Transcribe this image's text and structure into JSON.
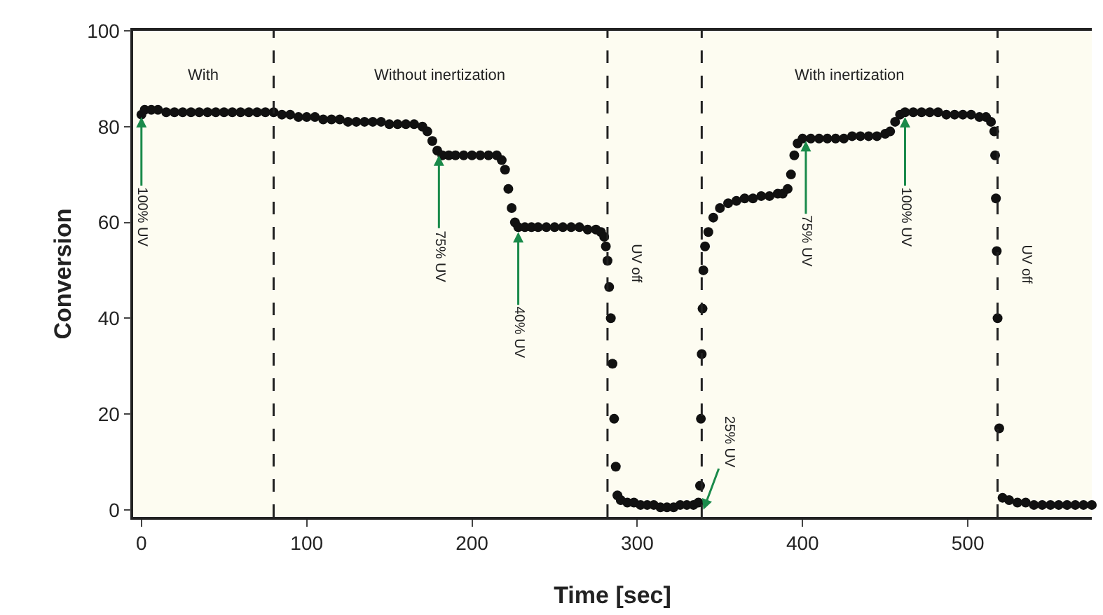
{
  "chart_data": {
    "type": "scatter",
    "xlabel": "Time [sec]",
    "ylabel": "Conversion",
    "xlim": [
      -5,
      575
    ],
    "xticks": [
      0,
      100,
      200,
      300,
      400,
      500
    ],
    "ylim": [
      -1.5,
      100
    ],
    "yticks": [
      0,
      20,
      40,
      60,
      80,
      100
    ],
    "marker": "circle",
    "series": [
      {
        "color": "#111111",
        "x": [
          0,
          2,
          6,
          10,
          15,
          20,
          25,
          30,
          35,
          40,
          45,
          50,
          55,
          60,
          65,
          70,
          75,
          80,
          85,
          90,
          95,
          100,
          105,
          110,
          115,
          120,
          125,
          130,
          135,
          140,
          145,
          150,
          155,
          160,
          165,
          170,
          173,
          176,
          179,
          182,
          186,
          190,
          195,
          200,
          205,
          210,
          215,
          218,
          220,
          222,
          224,
          226,
          228,
          232,
          236,
          240,
          245,
          250,
          255,
          260,
          265,
          270,
          275,
          278,
          280,
          281,
          282,
          283,
          284,
          285,
          286,
          287,
          288,
          290,
          294,
          298,
          302,
          306,
          310,
          314,
          318,
          322,
          326,
          330,
          334,
          337,
          338,
          338.5,
          339,
          339.5,
          340,
          341,
          343,
          346,
          350,
          355,
          360,
          365,
          370,
          375,
          380,
          385,
          388,
          391,
          393,
          395,
          397,
          400,
          405,
          410,
          415,
          420,
          425,
          430,
          435,
          440,
          445,
          450,
          453,
          456,
          459,
          462,
          467,
          472,
          477,
          482,
          487,
          492,
          497,
          502,
          507,
          511,
          514,
          516,
          516.5,
          517,
          517.5,
          518,
          519,
          521,
          525,
          530,
          535,
          540,
          545,
          550,
          555,
          560,
          565,
          570,
          575
        ],
        "values": [
          82.5,
          83.5,
          83.5,
          83.5,
          83,
          83,
          83,
          83,
          83,
          83,
          83,
          83,
          83,
          83,
          83,
          83,
          83,
          83,
          82.5,
          82.5,
          82,
          82,
          82,
          81.5,
          81.5,
          81.5,
          81,
          81,
          81,
          81,
          81,
          80.5,
          80.5,
          80.5,
          80.5,
          80,
          79,
          77,
          75,
          74,
          74,
          74,
          74,
          74,
          74,
          74,
          74,
          73,
          71,
          67,
          63,
          60,
          59,
          59,
          59,
          59,
          59,
          59,
          59,
          59,
          59,
          58.5,
          58.5,
          58,
          57,
          55,
          52,
          46.5,
          40,
          30.5,
          19,
          9,
          3,
          2,
          1.5,
          1.5,
          1,
          1,
          1,
          0.5,
          0.5,
          0.5,
          1,
          1,
          1,
          1.5,
          5,
          19,
          32.5,
          42,
          50,
          55,
          58,
          61,
          63,
          64,
          64.5,
          65,
          65,
          65.5,
          65.5,
          66,
          66,
          67,
          70,
          74,
          76.5,
          77.5,
          77.5,
          77.5,
          77.5,
          77.5,
          77.5,
          78,
          78,
          78,
          78,
          78.5,
          79,
          81,
          82.5,
          83,
          83,
          83,
          83,
          83,
          82.5,
          82.5,
          82.5,
          82.5,
          82,
          82,
          81,
          79,
          74,
          65,
          54,
          40,
          17,
          2.5,
          2,
          1.5,
          1.5,
          1,
          1,
          1,
          1,
          1,
          1,
          1,
          1
        ]
      }
    ],
    "ref_lines": [
      {
        "axis": "x",
        "value": 80,
        "label": null
      },
      {
        "axis": "x",
        "value": 282,
        "label": "UV off"
      },
      {
        "axis": "x",
        "value": 339,
        "label": null
      },
      {
        "axis": "x",
        "value": 518,
        "label": "UV off"
      }
    ],
    "line_style": "dashed",
    "annotations": [
      "With",
      "Without inertization",
      "With inertization",
      {
        "text": "100% UV",
        "x": 0,
        "y": 82
      },
      {
        "text": "75% UV",
        "x": 180,
        "y": 74
      },
      {
        "text": "40% UV",
        "x": 228,
        "y": 58
      },
      {
        "text": "25% UV",
        "x": 340,
        "y": 0
      },
      {
        "text": "75% UV",
        "x": 402,
        "y": 77
      },
      {
        "text": "100% UV",
        "x": 462,
        "y": 82
      }
    ]
  }
}
